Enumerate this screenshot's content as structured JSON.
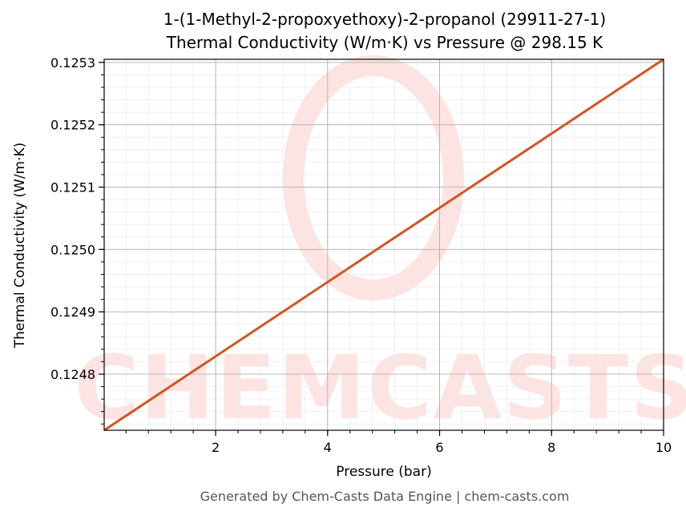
{
  "chart_data": {
    "type": "line",
    "title_line1": "1-(1-Methyl-2-propoxyethoxy)-2-propanol (29911-27-1)",
    "title_line2": "Thermal Conductivity (W/m·K) vs Pressure @ 298.15 K",
    "xlabel": "Pressure (bar)",
    "ylabel": "Thermal Conductivity (W/m·K)",
    "xlim": [
      0.01,
      10
    ],
    "ylim": [
      0.12471,
      0.125305
    ],
    "xticks": [
      2,
      4,
      6,
      8,
      10
    ],
    "xtick_labels": [
      "2",
      "4",
      "6",
      "8",
      "10"
    ],
    "yticks": [
      0.1248,
      0.1249,
      0.125,
      0.1251,
      0.1252,
      0.1253
    ],
    "ytick_labels": [
      "0.1248",
      "0.1249",
      "0.1250",
      "0.1251",
      "0.1252",
      "0.1253"
    ],
    "grid": true,
    "series": [
      {
        "color": "#d4541f",
        "x": [
          0.01,
          10
        ],
        "y": [
          0.12471,
          0.125305
        ]
      }
    ],
    "watermark": "CHEMCASTS",
    "watermark_color": "#fde3e1"
  },
  "footer": "Generated by Chem-Casts Data Engine | chem-casts.com"
}
